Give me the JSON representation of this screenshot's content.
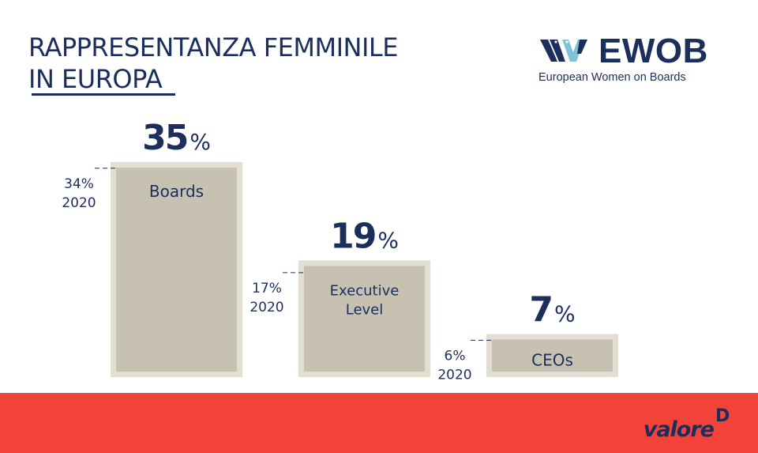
{
  "title": {
    "line1": "RAPPRESENTANZA FEMMINILE",
    "line2": "IN EUROPA"
  },
  "logo": {
    "name": "EWOB",
    "subtitle": "European Women on Boards",
    "mark": "ewob-stars-wings-icon"
  },
  "colors": {
    "navy": "#1c2e5c",
    "bar_fill": "#c6c1b0",
    "bar_frame": "#e2ded2",
    "footer": "#f1433a",
    "logo_accent": "#7fc3d8"
  },
  "chart_data": {
    "type": "bar",
    "categories": [
      "Boards",
      "Executive Level",
      "CEOs"
    ],
    "category_lines": [
      [
        "Boards"
      ],
      [
        "Executive",
        "Level"
      ],
      [
        "CEOs"
      ]
    ],
    "values": [
      35,
      19,
      7
    ],
    "value_labels": [
      "35",
      "19",
      "7"
    ],
    "unit": "%",
    "reference_values": [
      34,
      17,
      6
    ],
    "reference_labels": [
      "34%",
      "17%",
      "6%"
    ],
    "reference_year": "2020",
    "title": "",
    "xlabel": "",
    "ylabel": "",
    "ylim": [
      0,
      35
    ],
    "grid": false,
    "legend": "none"
  },
  "footer": {
    "brand": "valore",
    "brand_mark": "D"
  }
}
